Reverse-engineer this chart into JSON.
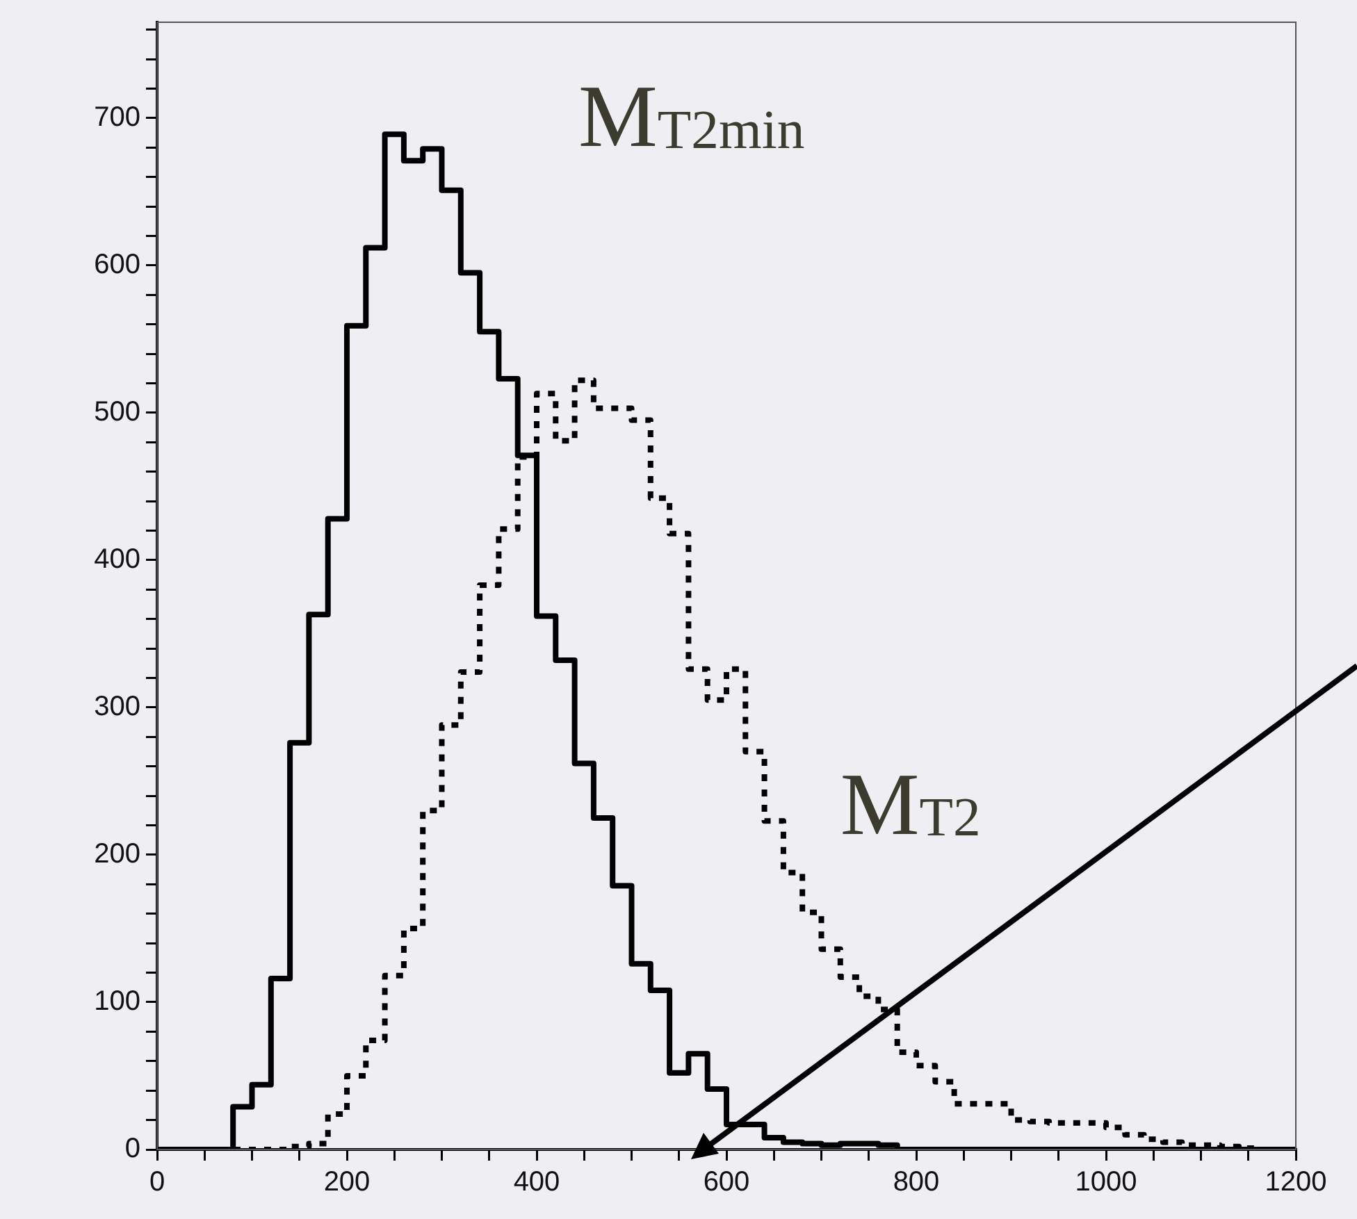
{
  "chart_data": {
    "type": "histogram",
    "bins": [
      0,
      20,
      40,
      60,
      80,
      100,
      120,
      140,
      160,
      180,
      200,
      220,
      240,
      260,
      280,
      300,
      320,
      340,
      360,
      380,
      400,
      420,
      440,
      460,
      480,
      500,
      520,
      540,
      560,
      580,
      600,
      620,
      640,
      660,
      680,
      700,
      720,
      740,
      760,
      780,
      800,
      820,
      840,
      860,
      880,
      900,
      920,
      940,
      960,
      980,
      1000,
      1020,
      1040,
      1060,
      1080,
      1100,
      1120,
      1140,
      1160,
      1180,
      1200
    ],
    "series": [
      {
        "name": "M$_{T2min}$",
        "color": "#000000",
        "line_style": "solid",
        "values": [
          0,
          0,
          0,
          0,
          29,
          44,
          116,
          276,
          363,
          428,
          559,
          612,
          689,
          671,
          679,
          651,
          595,
          555,
          523,
          471,
          362,
          332,
          262,
          225,
          179,
          126,
          108,
          52,
          65,
          41,
          17,
          17,
          8,
          5,
          4,
          3,
          4,
          4,
          3,
          0,
          0,
          0,
          0,
          0,
          0,
          0,
          0,
          0,
          0,
          0,
          0,
          0,
          0,
          0,
          0,
          0,
          0,
          0,
          0,
          0
        ]
      },
      {
        "name": "M$_{T2}$",
        "color": "#000000",
        "line_style": "dotted",
        "values": [
          0,
          0,
          0,
          0,
          0,
          0,
          0,
          2,
          4,
          24,
          50,
          74,
          118,
          150,
          230,
          288,
          324,
          383,
          421,
          470,
          513,
          481,
          522,
          503,
          503,
          495,
          442,
          418,
          326,
          305,
          326,
          270,
          223,
          188,
          161,
          136,
          117,
          104,
          95,
          66,
          57,
          46,
          31,
          31,
          31,
          20,
          19,
          18,
          18,
          18,
          15,
          10,
          7,
          5,
          3,
          3,
          2,
          1,
          0,
          0
        ]
      }
    ],
    "xlim": [
      0,
      1200
    ],
    "xticks": [
      0,
      {
        "value": 50,
        "label": null
      },
      {
        "value": 100,
        "label": null
      },
      {
        "value": 150,
        "label": null
      },
      200,
      {
        "value": 250,
        "label": null
      },
      {
        "value": 300,
        "label": null
      },
      {
        "value": 350,
        "label": null
      },
      400,
      {
        "value": 450,
        "label": null
      },
      {
        "value": 500,
        "label": null
      },
      {
        "value": 550,
        "label": null
      },
      600,
      {
        "value": 650,
        "label": null
      },
      {
        "value": 700,
        "label": null
      },
      {
        "value": 750,
        "label": null
      },
      800,
      {
        "value": 850,
        "label": null
      },
      {
        "value": 900,
        "label": null
      },
      {
        "value": 950,
        "label": null
      },
      1000,
      {
        "value": 1050,
        "label": null
      },
      {
        "value": 1100,
        "label": null
      },
      {
        "value": 1150,
        "label": null
      },
      1200
    ],
    "ylim": [
      0,
      765
    ],
    "yticks": [
      0,
      {
        "value": 20,
        "label": null
      },
      {
        "value": 40,
        "label": null
      },
      {
        "value": 60,
        "label": null
      },
      {
        "value": 80,
        "label": null
      },
      100,
      {
        "value": 120,
        "label": null
      },
      {
        "value": 140,
        "label": null
      },
      {
        "value": 160,
        "label": null
      },
      {
        "value": 180,
        "label": null
      },
      200,
      {
        "value": 220,
        "label": null
      },
      {
        "value": 240,
        "label": null
      },
      {
        "value": 260,
        "label": null
      },
      {
        "value": 280,
        "label": null
      },
      300,
      {
        "value": 320,
        "label": null
      },
      {
        "value": 340,
        "label": null
      },
      {
        "value": 360,
        "label": null
      },
      {
        "value": 380,
        "label": null
      },
      400,
      {
        "value": 420,
        "label": null
      },
      {
        "value": 440,
        "label": null
      },
      {
        "value": 460,
        "label": null
      },
      {
        "value": 480,
        "label": null
      },
      500,
      {
        "value": 520,
        "label": null
      },
      {
        "value": 540,
        "label": null
      },
      {
        "value": 560,
        "label": null
      },
      {
        "value": 580,
        "label": null
      },
      600,
      {
        "value": 620,
        "label": null
      },
      {
        "value": 640,
        "label": null
      },
      {
        "value": 660,
        "label": null
      },
      {
        "value": 680,
        "label": null
      },
      700,
      {
        "value": 720,
        "label": null
      },
      {
        "value": 740,
        "label": null
      },
      {
        "value": 760,
        "label": null
      }
    ],
    "grid": false,
    "legend": false
  }
}
